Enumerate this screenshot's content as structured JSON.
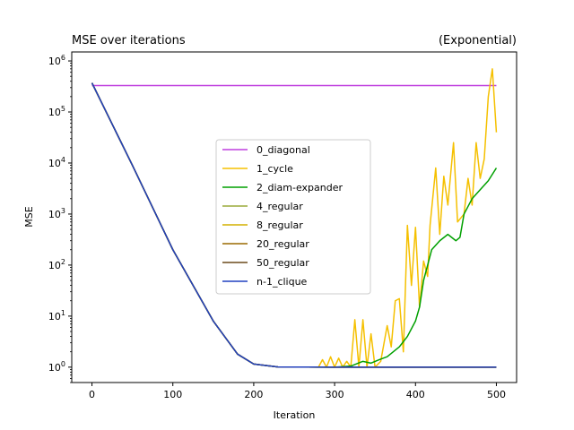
{
  "chart_data": {
    "type": "line",
    "title": "MSE over iterations",
    "title_right": "(Exponential)",
    "xlabel": "Iteration",
    "ylabel": "MSE",
    "xlim": [
      -25,
      525
    ],
    "ylim": [
      0.5,
      1500000
    ],
    "yscale": "log",
    "grid": false,
    "legend_placement": "center",
    "x_ticks": [
      0,
      100,
      200,
      300,
      400,
      500
    ],
    "x_tick_labels": [
      "0",
      "100",
      "200",
      "300",
      "400",
      "500"
    ],
    "y_ticks": [
      1,
      10,
      100,
      1000,
      10000,
      100000,
      1000000
    ],
    "y_tick_labels": [
      "10^0",
      "10^1",
      "10^2",
      "10^3",
      "10^4",
      "10^5",
      "10^6"
    ],
    "series": [
      {
        "name": "0_diagonal",
        "color": "#bf3fdf",
        "points": [
          [
            0,
            330000
          ],
          [
            500,
            330000
          ]
        ]
      },
      {
        "name": "1_cycle",
        "color": "#f5c000",
        "points": [
          [
            0,
            370000
          ],
          [
            50,
            9000
          ],
          [
            100,
            200
          ],
          [
            150,
            8
          ],
          [
            180,
            1.8
          ],
          [
            200,
            1.15
          ],
          [
            230,
            1.01
          ],
          [
            280,
            1.0
          ],
          [
            285,
            1.4
          ],
          [
            290,
            1.0
          ],
          [
            295,
            1.6
          ],
          [
            300,
            1.0
          ],
          [
            305,
            1.5
          ],
          [
            310,
            1.0
          ],
          [
            315,
            1.3
          ],
          [
            320,
            1.0
          ],
          [
            325,
            8.5
          ],
          [
            330,
            1.0
          ],
          [
            335,
            8.5
          ],
          [
            340,
            1.0
          ],
          [
            345,
            4.5
          ],
          [
            350,
            1.0
          ],
          [
            357,
            1.3
          ],
          [
            365,
            6.5
          ],
          [
            370,
            2.5
          ],
          [
            375,
            20
          ],
          [
            380,
            22
          ],
          [
            385,
            2
          ],
          [
            390,
            600
          ],
          [
            395,
            40
          ],
          [
            400,
            550
          ],
          [
            405,
            15
          ],
          [
            410,
            120
          ],
          [
            415,
            60
          ],
          [
            418,
            600
          ],
          [
            425,
            8000
          ],
          [
            430,
            400
          ],
          [
            435,
            5500
          ],
          [
            440,
            1500
          ],
          [
            447,
            25000
          ],
          [
            452,
            700
          ],
          [
            460,
            1000
          ],
          [
            465,
            5000
          ],
          [
            470,
            1500
          ],
          [
            475,
            25000
          ],
          [
            480,
            5000
          ],
          [
            485,
            12000
          ],
          [
            490,
            200000
          ],
          [
            495,
            700000
          ],
          [
            500,
            40000
          ]
        ]
      },
      {
        "name": "2_diam-expander",
        "color": "#00a000",
        "points": [
          [
            0,
            370000
          ],
          [
            50,
            9000
          ],
          [
            100,
            200
          ],
          [
            150,
            8
          ],
          [
            180,
            1.8
          ],
          [
            200,
            1.15
          ],
          [
            230,
            1.01
          ],
          [
            300,
            1.0
          ],
          [
            320,
            1.05
          ],
          [
            335,
            1.3
          ],
          [
            345,
            1.2
          ],
          [
            355,
            1.4
          ],
          [
            365,
            1.6
          ],
          [
            380,
            2.5
          ],
          [
            390,
            4
          ],
          [
            400,
            8
          ],
          [
            405,
            15
          ],
          [
            410,
            50
          ],
          [
            415,
            100
          ],
          [
            420,
            200
          ],
          [
            430,
            300
          ],
          [
            440,
            400
          ],
          [
            450,
            300
          ],
          [
            455,
            350
          ],
          [
            460,
            1000
          ],
          [
            470,
            2000
          ],
          [
            480,
            3000
          ],
          [
            490,
            4500
          ],
          [
            500,
            8000
          ]
        ]
      },
      {
        "name": "4_regular",
        "color": "#9aaa3a",
        "points": [
          [
            0,
            370000
          ],
          [
            50,
            9000
          ],
          [
            100,
            200
          ],
          [
            150,
            8
          ],
          [
            180,
            1.8
          ],
          [
            200,
            1.15
          ],
          [
            230,
            1.01
          ],
          [
            300,
            1.0
          ],
          [
            500,
            1.0
          ]
        ]
      },
      {
        "name": "8_regular",
        "color": "#d4b000",
        "points": [
          [
            0,
            370000
          ],
          [
            50,
            9000
          ],
          [
            100,
            200
          ],
          [
            150,
            8
          ],
          [
            180,
            1.8
          ],
          [
            200,
            1.15
          ],
          [
            230,
            1.01
          ],
          [
            300,
            1.0
          ],
          [
            500,
            1.0
          ]
        ]
      },
      {
        "name": "20_regular",
        "color": "#9a6a00",
        "points": [
          [
            0,
            370000
          ],
          [
            50,
            9000
          ],
          [
            100,
            200
          ],
          [
            150,
            8
          ],
          [
            180,
            1.8
          ],
          [
            200,
            1.15
          ],
          [
            230,
            1.01
          ],
          [
            300,
            1.0
          ],
          [
            500,
            1.0
          ]
        ]
      },
      {
        "name": "50_regular",
        "color": "#6b4a1c",
        "points": [
          [
            0,
            370000
          ],
          [
            50,
            9000
          ],
          [
            100,
            200
          ],
          [
            150,
            8
          ],
          [
            180,
            1.8
          ],
          [
            200,
            1.15
          ],
          [
            230,
            1.01
          ],
          [
            300,
            1.0
          ],
          [
            500,
            1.0
          ]
        ]
      },
      {
        "name": "n-1_clique",
        "color": "#2040c0",
        "points": [
          [
            0,
            370000
          ],
          [
            50,
            9000
          ],
          [
            100,
            200
          ],
          [
            150,
            8
          ],
          [
            180,
            1.8
          ],
          [
            200,
            1.15
          ],
          [
            230,
            1.01
          ],
          [
            300,
            1.0
          ],
          [
            500,
            1.0
          ]
        ]
      }
    ]
  }
}
